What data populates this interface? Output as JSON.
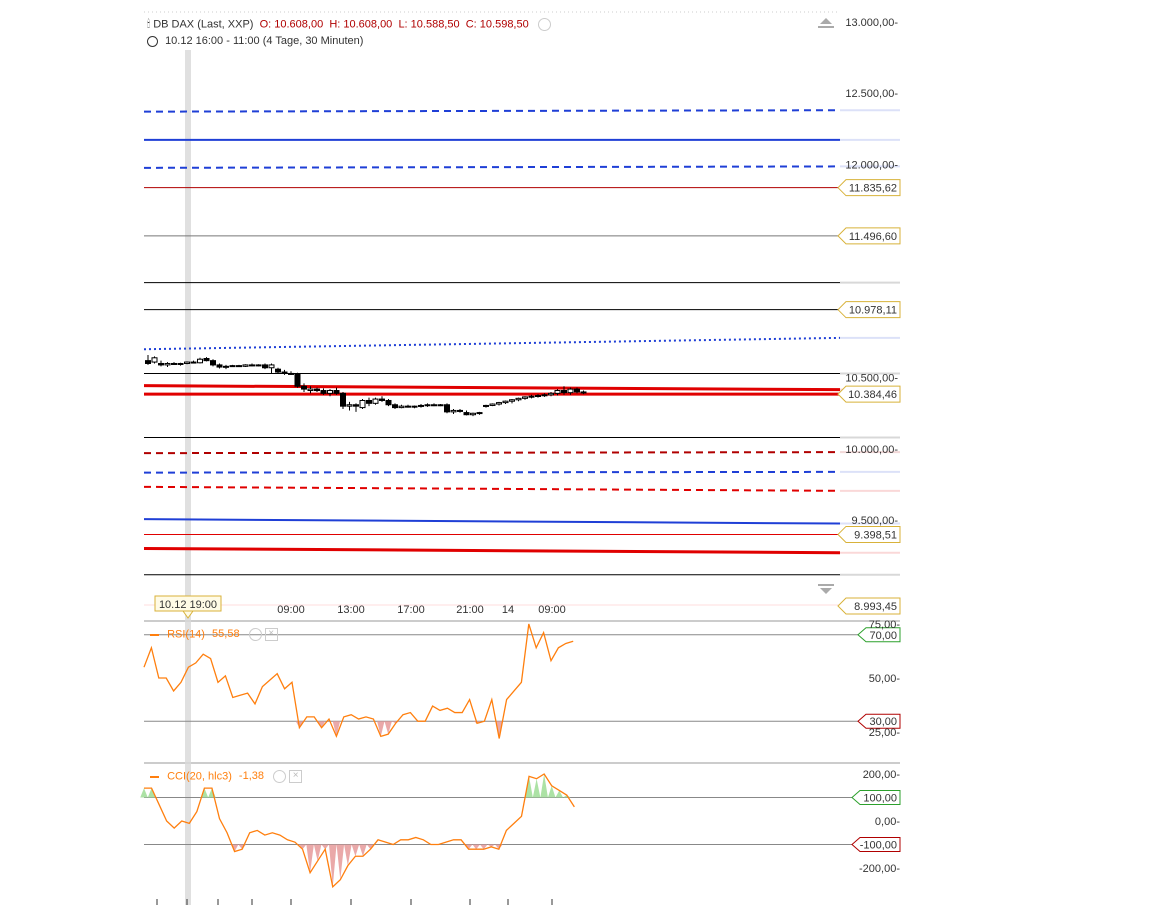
{
  "header": {
    "symbol": "DB DAX (Last, XXP)",
    "open": "O: 10.608,00",
    "high": "H: 10.608,00",
    "low": "L: 10.588,50",
    "close": "C: 10.598,50",
    "period": "10.12 16:00 - 11:00 (4 Tage, 30 Minuten)",
    "icons": [
      "candlestick-icon",
      "clock-icon",
      "settings-icon"
    ]
  },
  "crosshair_label": "10.12 19:00",
  "price_axis": {
    "ticks": [
      "13.000,00-",
      "12.500,00-",
      "12.000,00-",
      "10.500,00-",
      "10.000,00-",
      "9.500,00-"
    ],
    "tick_values": [
      13000,
      12500,
      12000,
      10500,
      10000,
      9500
    ],
    "level_labels": [
      {
        "text": "11.835,62",
        "value": 11835.62
      },
      {
        "text": "11.496,60",
        "value": 11496.6
      },
      {
        "text": "10.978,11",
        "value": 10978.11
      },
      {
        "text": "10.384,46",
        "value": 10384.46
      },
      {
        "text": "9.398,51",
        "value": 9398.51
      },
      {
        "text": "8.993,45",
        "value": 8993.45
      }
    ]
  },
  "time_axis": {
    "labels": [
      "09:00",
      "13:00",
      "17:00",
      "21:00",
      "14",
      "09:00"
    ]
  },
  "rsi": {
    "title": "RSI(14)",
    "value": "55,58",
    "color": "#ff7f0e",
    "ticks": [
      "75,00-",
      "50,00-",
      "25,00-"
    ],
    "tick_values": [
      75,
      50,
      25
    ],
    "levels": [
      {
        "text": "70,00",
        "value": 70,
        "color": "#2ca02c"
      },
      {
        "text": "30,00",
        "value": 30,
        "color": "#b00000"
      }
    ]
  },
  "cci": {
    "title": "CCI(20, hlc3)",
    "value": "-1,38",
    "color": "#ff7f0e",
    "ticks": [
      "200,00-",
      "0,00-",
      "-200,00-"
    ],
    "tick_values": [
      200,
      0,
      -200
    ],
    "levels": [
      {
        "text": "100,00",
        "value": 100,
        "color": "#2ca02c"
      },
      {
        "text": "-100,00",
        "value": -100,
        "color": "#b00000"
      }
    ]
  },
  "chart_data": [
    {
      "type": "candlestick",
      "title": "DB DAX (Last, XXP)",
      "ylim": [
        8950,
        13050
      ],
      "candles": [
        {
          "o": 10620,
          "h": 10660,
          "l": 10590,
          "c": 10600
        },
        {
          "o": 10610,
          "h": 10650,
          "l": 10600,
          "c": 10640
        },
        {
          "o": 10600,
          "h": 10620,
          "l": 10580,
          "c": 10590
        },
        {
          "o": 10590,
          "h": 10610,
          "l": 10575,
          "c": 10600
        },
        {
          "o": 10600,
          "h": 10610,
          "l": 10590,
          "c": 10595
        },
        {
          "o": 10595,
          "h": 10605,
          "l": 10585,
          "c": 10600
        },
        {
          "o": 10600,
          "h": 10615,
          "l": 10595,
          "c": 10610
        },
        {
          "o": 10610,
          "h": 10620,
          "l": 10600,
          "c": 10605
        },
        {
          "o": 10605,
          "h": 10640,
          "l": 10600,
          "c": 10630
        },
        {
          "o": 10635,
          "h": 10645,
          "l": 10615,
          "c": 10620
        },
        {
          "o": 10620,
          "h": 10630,
          "l": 10580,
          "c": 10590
        },
        {
          "o": 10590,
          "h": 10600,
          "l": 10565,
          "c": 10575
        },
        {
          "o": 10575,
          "h": 10590,
          "l": 10560,
          "c": 10580
        },
        {
          "o": 10580,
          "h": 10590,
          "l": 10575,
          "c": 10585
        },
        {
          "o": 10585,
          "h": 10590,
          "l": 10575,
          "c": 10580
        },
        {
          "o": 10580,
          "h": 10595,
          "l": 10575,
          "c": 10590
        },
        {
          "o": 10590,
          "h": 10600,
          "l": 10580,
          "c": 10585
        },
        {
          "o": 10585,
          "h": 10595,
          "l": 10580,
          "c": 10590
        },
        {
          "o": 10590,
          "h": 10600,
          "l": 10560,
          "c": 10570
        },
        {
          "o": 10570,
          "h": 10600,
          "l": 10530,
          "c": 10590
        },
        {
          "o": 10560,
          "h": 10570,
          "l": 10530,
          "c": 10540
        },
        {
          "o": 10540,
          "h": 10555,
          "l": 10520,
          "c": 10530
        },
        {
          "o": 10530,
          "h": 10545,
          "l": 10520,
          "c": 10525
        },
        {
          "o": 10525,
          "h": 10535,
          "l": 10430,
          "c": 10440
        },
        {
          "o": 10440,
          "h": 10460,
          "l": 10400,
          "c": 10420
        },
        {
          "o": 10410,
          "h": 10440,
          "l": 10390,
          "c": 10420
        },
        {
          "o": 10420,
          "h": 10430,
          "l": 10400,
          "c": 10410
        },
        {
          "o": 10410,
          "h": 10425,
          "l": 10380,
          "c": 10390
        },
        {
          "o": 10390,
          "h": 10420,
          "l": 10370,
          "c": 10410
        },
        {
          "o": 10410,
          "h": 10430,
          "l": 10380,
          "c": 10390
        },
        {
          "o": 10390,
          "h": 10400,
          "l": 10280,
          "c": 10300
        },
        {
          "o": 10300,
          "h": 10330,
          "l": 10270,
          "c": 10310
        },
        {
          "o": 10310,
          "h": 10320,
          "l": 10260,
          "c": 10300
        },
        {
          "o": 10290,
          "h": 10350,
          "l": 10280,
          "c": 10340
        },
        {
          "o": 10340,
          "h": 10360,
          "l": 10300,
          "c": 10320
        },
        {
          "o": 10320,
          "h": 10360,
          "l": 10310,
          "c": 10350
        },
        {
          "o": 10350,
          "h": 10370,
          "l": 10330,
          "c": 10340
        },
        {
          "o": 10340,
          "h": 10350,
          "l": 10300,
          "c": 10310
        },
        {
          "o": 10310,
          "h": 10320,
          "l": 10280,
          "c": 10290
        },
        {
          "o": 10290,
          "h": 10310,
          "l": 10285,
          "c": 10300
        },
        {
          "o": 10300,
          "h": 10310,
          "l": 10290,
          "c": 10295
        },
        {
          "o": 10295,
          "h": 10305,
          "l": 10285,
          "c": 10300
        },
        {
          "o": 10300,
          "h": 10315,
          "l": 10290,
          "c": 10305
        },
        {
          "o": 10305,
          "h": 10320,
          "l": 10295,
          "c": 10310
        },
        {
          "o": 10310,
          "h": 10320,
          "l": 10300,
          "c": 10305
        },
        {
          "o": 10305,
          "h": 10315,
          "l": 10300,
          "c": 10310
        },
        {
          "o": 10310,
          "h": 10320,
          "l": 10250,
          "c": 10260
        },
        {
          "o": 10260,
          "h": 10280,
          "l": 10245,
          "c": 10270
        },
        {
          "o": 10270,
          "h": 10280,
          "l": 10255,
          "c": 10265
        },
        {
          "o": 10255,
          "h": 10270,
          "l": 10235,
          "c": 10240
        },
        {
          "o": 10240,
          "h": 10255,
          "l": 10230,
          "c": 10250
        },
        {
          "o": 10250,
          "h": 10260,
          "l": 10240,
          "c": 10255
        },
        {
          "o": 10300,
          "h": 10310,
          "l": 10290,
          "c": 10305
        },
        {
          "o": 10305,
          "h": 10320,
          "l": 10300,
          "c": 10315
        },
        {
          "o": 10315,
          "h": 10330,
          "l": 10305,
          "c": 10325
        },
        {
          "o": 10325,
          "h": 10340,
          "l": 10315,
          "c": 10335
        },
        {
          "o": 10335,
          "h": 10350,
          "l": 10320,
          "c": 10345
        },
        {
          "o": 10345,
          "h": 10360,
          "l": 10335,
          "c": 10355
        },
        {
          "o": 10355,
          "h": 10370,
          "l": 10345,
          "c": 10365
        },
        {
          "o": 10365,
          "h": 10380,
          "l": 10355,
          "c": 10370
        },
        {
          "o": 10370,
          "h": 10385,
          "l": 10360,
          "c": 10375
        },
        {
          "o": 10375,
          "h": 10390,
          "l": 10365,
          "c": 10380
        },
        {
          "o": 10380,
          "h": 10400,
          "l": 10370,
          "c": 10390
        },
        {
          "o": 10390,
          "h": 10420,
          "l": 10375,
          "c": 10410
        },
        {
          "o": 10410,
          "h": 10440,
          "l": 10380,
          "c": 10395
        },
        {
          "o": 10395,
          "h": 10430,
          "l": 10380,
          "c": 10420
        },
        {
          "o": 10420,
          "h": 10430,
          "l": 10390,
          "c": 10400
        },
        {
          "o": 10400,
          "h": 10410,
          "l": 10385,
          "c": 10395
        }
      ],
      "horizontal_lines": [
        {
          "style": "dashed",
          "color": "#1f3fd6",
          "y_start": 12370,
          "y_end": 12380
        },
        {
          "style": "solid",
          "color": "#1f3fd6",
          "y_start": 12172,
          "y_end": 12172
        },
        {
          "style": "dashed",
          "color": "#1f3fd6",
          "y_start": 11975,
          "y_end": 11985
        },
        {
          "style": "solid",
          "color": "#b00000",
          "y_start": 11835.62,
          "y_end": 11835.62
        },
        {
          "style": "solid",
          "color": "#777777",
          "y_start": 11496.6,
          "y_end": 11496.6
        },
        {
          "style": "solid",
          "color": "#000000",
          "y_start": 11168,
          "y_end": 11168
        },
        {
          "style": "solid",
          "color": "#000000",
          "y_start": 10978.11,
          "y_end": 10978.11
        },
        {
          "style": "dotted",
          "color": "#1f3fd6",
          "y_start": 10700,
          "y_end": 10780
        },
        {
          "style": "solid",
          "color": "#000000",
          "y_start": 10530,
          "y_end": 10530
        },
        {
          "style": "solid-thick",
          "color": "#e00000",
          "y_start": 10444,
          "y_end": 10416
        },
        {
          "style": "solid-thick",
          "color": "#e00000",
          "y_start": 10385,
          "y_end": 10384.46
        },
        {
          "style": "solid",
          "color": "#000000",
          "y_start": 10080,
          "y_end": 10080
        },
        {
          "style": "dashed",
          "color": "#b00000",
          "y_start": 9970,
          "y_end": 9977
        },
        {
          "style": "dashed",
          "color": "#1f3fd6",
          "y_start": 9833,
          "y_end": 9838
        },
        {
          "style": "dashed",
          "color": "#e00000",
          "y_start": 9733,
          "y_end": 9705
        },
        {
          "style": "solid",
          "color": "#1f3fd6",
          "y_start": 9506,
          "y_end": 9475
        },
        {
          "style": "solid",
          "color": "#e00000",
          "y_start": 9398.51,
          "y_end": 9398.51
        },
        {
          "style": "solid-thick",
          "color": "#e00000",
          "y_start": 9300,
          "y_end": 9270
        },
        {
          "style": "solid",
          "color": "#000000",
          "y_start": 9115,
          "y_end": 9115
        }
      ]
    },
    {
      "type": "line",
      "title": "RSI(14)",
      "ylim": [
        20,
        80
      ],
      "reference_levels": [
        70,
        30
      ],
      "values": [
        55,
        64,
        50,
        50,
        44,
        48,
        55,
        57,
        61,
        59,
        48,
        51,
        41,
        42,
        43,
        38,
        46,
        49,
        52,
        45,
        48,
        27,
        32,
        32,
        27,
        31,
        23,
        32,
        33,
        31,
        32,
        31,
        23,
        24,
        29,
        33,
        34,
        30,
        30,
        37,
        35,
        36,
        34,
        34,
        40,
        29,
        30,
        40,
        22,
        40,
        44,
        48,
        75,
        64,
        71,
        58,
        64,
        66,
        67
      ],
      "current": 55.58
    },
    {
      "type": "area",
      "title": "CCI(20, hlc3)",
      "ylim": [
        -260,
        230
      ],
      "reference_levels": [
        100,
        -100
      ],
      "values": [
        140,
        140,
        70,
        0,
        -30,
        0,
        -10,
        40,
        140,
        140,
        10,
        -50,
        -130,
        -120,
        -50,
        -40,
        -60,
        -50,
        -60,
        -80,
        -90,
        -120,
        -220,
        -170,
        -120,
        -280,
        -250,
        -190,
        -150,
        -150,
        -120,
        -80,
        -90,
        -100,
        -80,
        -80,
        -70,
        -80,
        -100,
        -100,
        -90,
        -80,
        -80,
        -120,
        -120,
        -120,
        -110,
        -120,
        -40,
        -10,
        20,
        190,
        180,
        200,
        150,
        130,
        110,
        60
      ],
      "current": -1.38
    }
  ]
}
